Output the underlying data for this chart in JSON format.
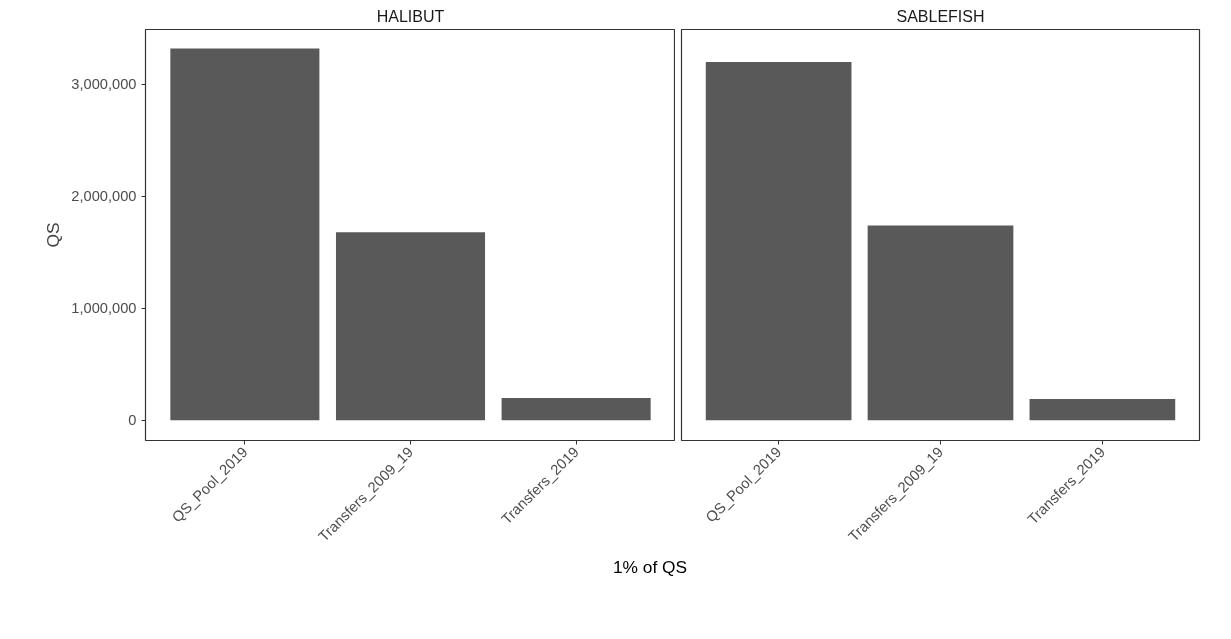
{
  "chart_data": [
    {
      "type": "bar",
      "title": "HALIBUT",
      "ylabel": "QS",
      "xlabel": "1% of QS",
      "categories": [
        "QS_Pool_2019",
        "Transfers_2009_19",
        "Transfers_2019"
      ],
      "values": [
        3320000,
        1680000,
        200000
      ],
      "color": "#595959",
      "ylim": [
        -180000,
        3490000
      ],
      "yticks": [
        {
          "value": 0,
          "label": "0"
        },
        {
          "value": 1000000,
          "label": "1,000,000"
        },
        {
          "value": 2000000,
          "label": "2,000,000"
        },
        {
          "value": 3000000,
          "label": "3,000,000"
        }
      ],
      "grid": false
    },
    {
      "type": "bar",
      "title": "SABLEFISH",
      "categories": [
        "QS_Pool_2019",
        "Transfers_2009_19",
        "Transfers_2019"
      ],
      "values": [
        3200000,
        1740000,
        190000
      ],
      "color": "#595959",
      "ylim": [
        -180000,
        3490000
      ],
      "grid": false,
      "tick_labels": "x"
    }
  ]
}
